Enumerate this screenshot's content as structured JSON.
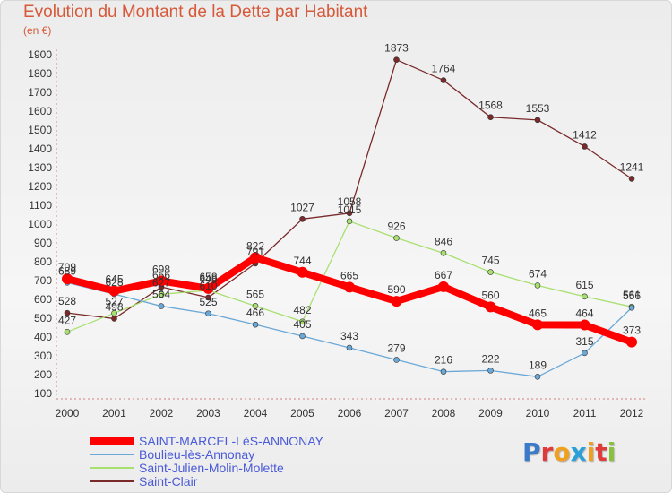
{
  "chart_data": {
    "type": "line",
    "title": "Evolution du Montant de la Dette par Habitant",
    "unit_label": "(en €)",
    "x": [
      "2000",
      "2001",
      "2002",
      "2003",
      "2004",
      "2005",
      "2006",
      "2007",
      "2008",
      "2009",
      "2010",
      "2011",
      "2012"
    ],
    "ylim": [
      100,
      1900
    ],
    "yticks": [
      100,
      200,
      300,
      400,
      500,
      600,
      700,
      800,
      900,
      1000,
      1100,
      1200,
      1300,
      1400,
      1500,
      1600,
      1700,
      1800,
      1900
    ],
    "grid": false,
    "legend_position": "bottom-left",
    "series": [
      {
        "name": "SAINT-MARCEL-LèS-ANNONAY",
        "color": "#ff0000",
        "values": [
          709,
          645,
          698,
          658,
          822,
          744,
          665,
          590,
          667,
          560,
          465,
          464,
          373
        ]
      },
      {
        "name": "Boulieu-lès-Annonay",
        "color": "#6aa8d8",
        "values": [
          689,
          628,
          564,
          525,
          466,
          405,
          343,
          279,
          216,
          222,
          189,
          315,
          556
        ]
      },
      {
        "name": "Saint-Julien-Molin-Molette",
        "color": "#a8e070",
        "values": [
          427,
          527,
          627,
          648,
          565,
          482,
          1015,
          926,
          846,
          745,
          674,
          615,
          561
        ]
      },
      {
        "name": "Saint-Clair",
        "color": "#7a2a2a",
        "values": [
          528,
          498,
          666,
          610,
          791,
          1027,
          1058,
          1873,
          1764,
          1568,
          1553,
          1412,
          1241
        ]
      }
    ]
  },
  "logo": {
    "text": "Proxiti"
  }
}
